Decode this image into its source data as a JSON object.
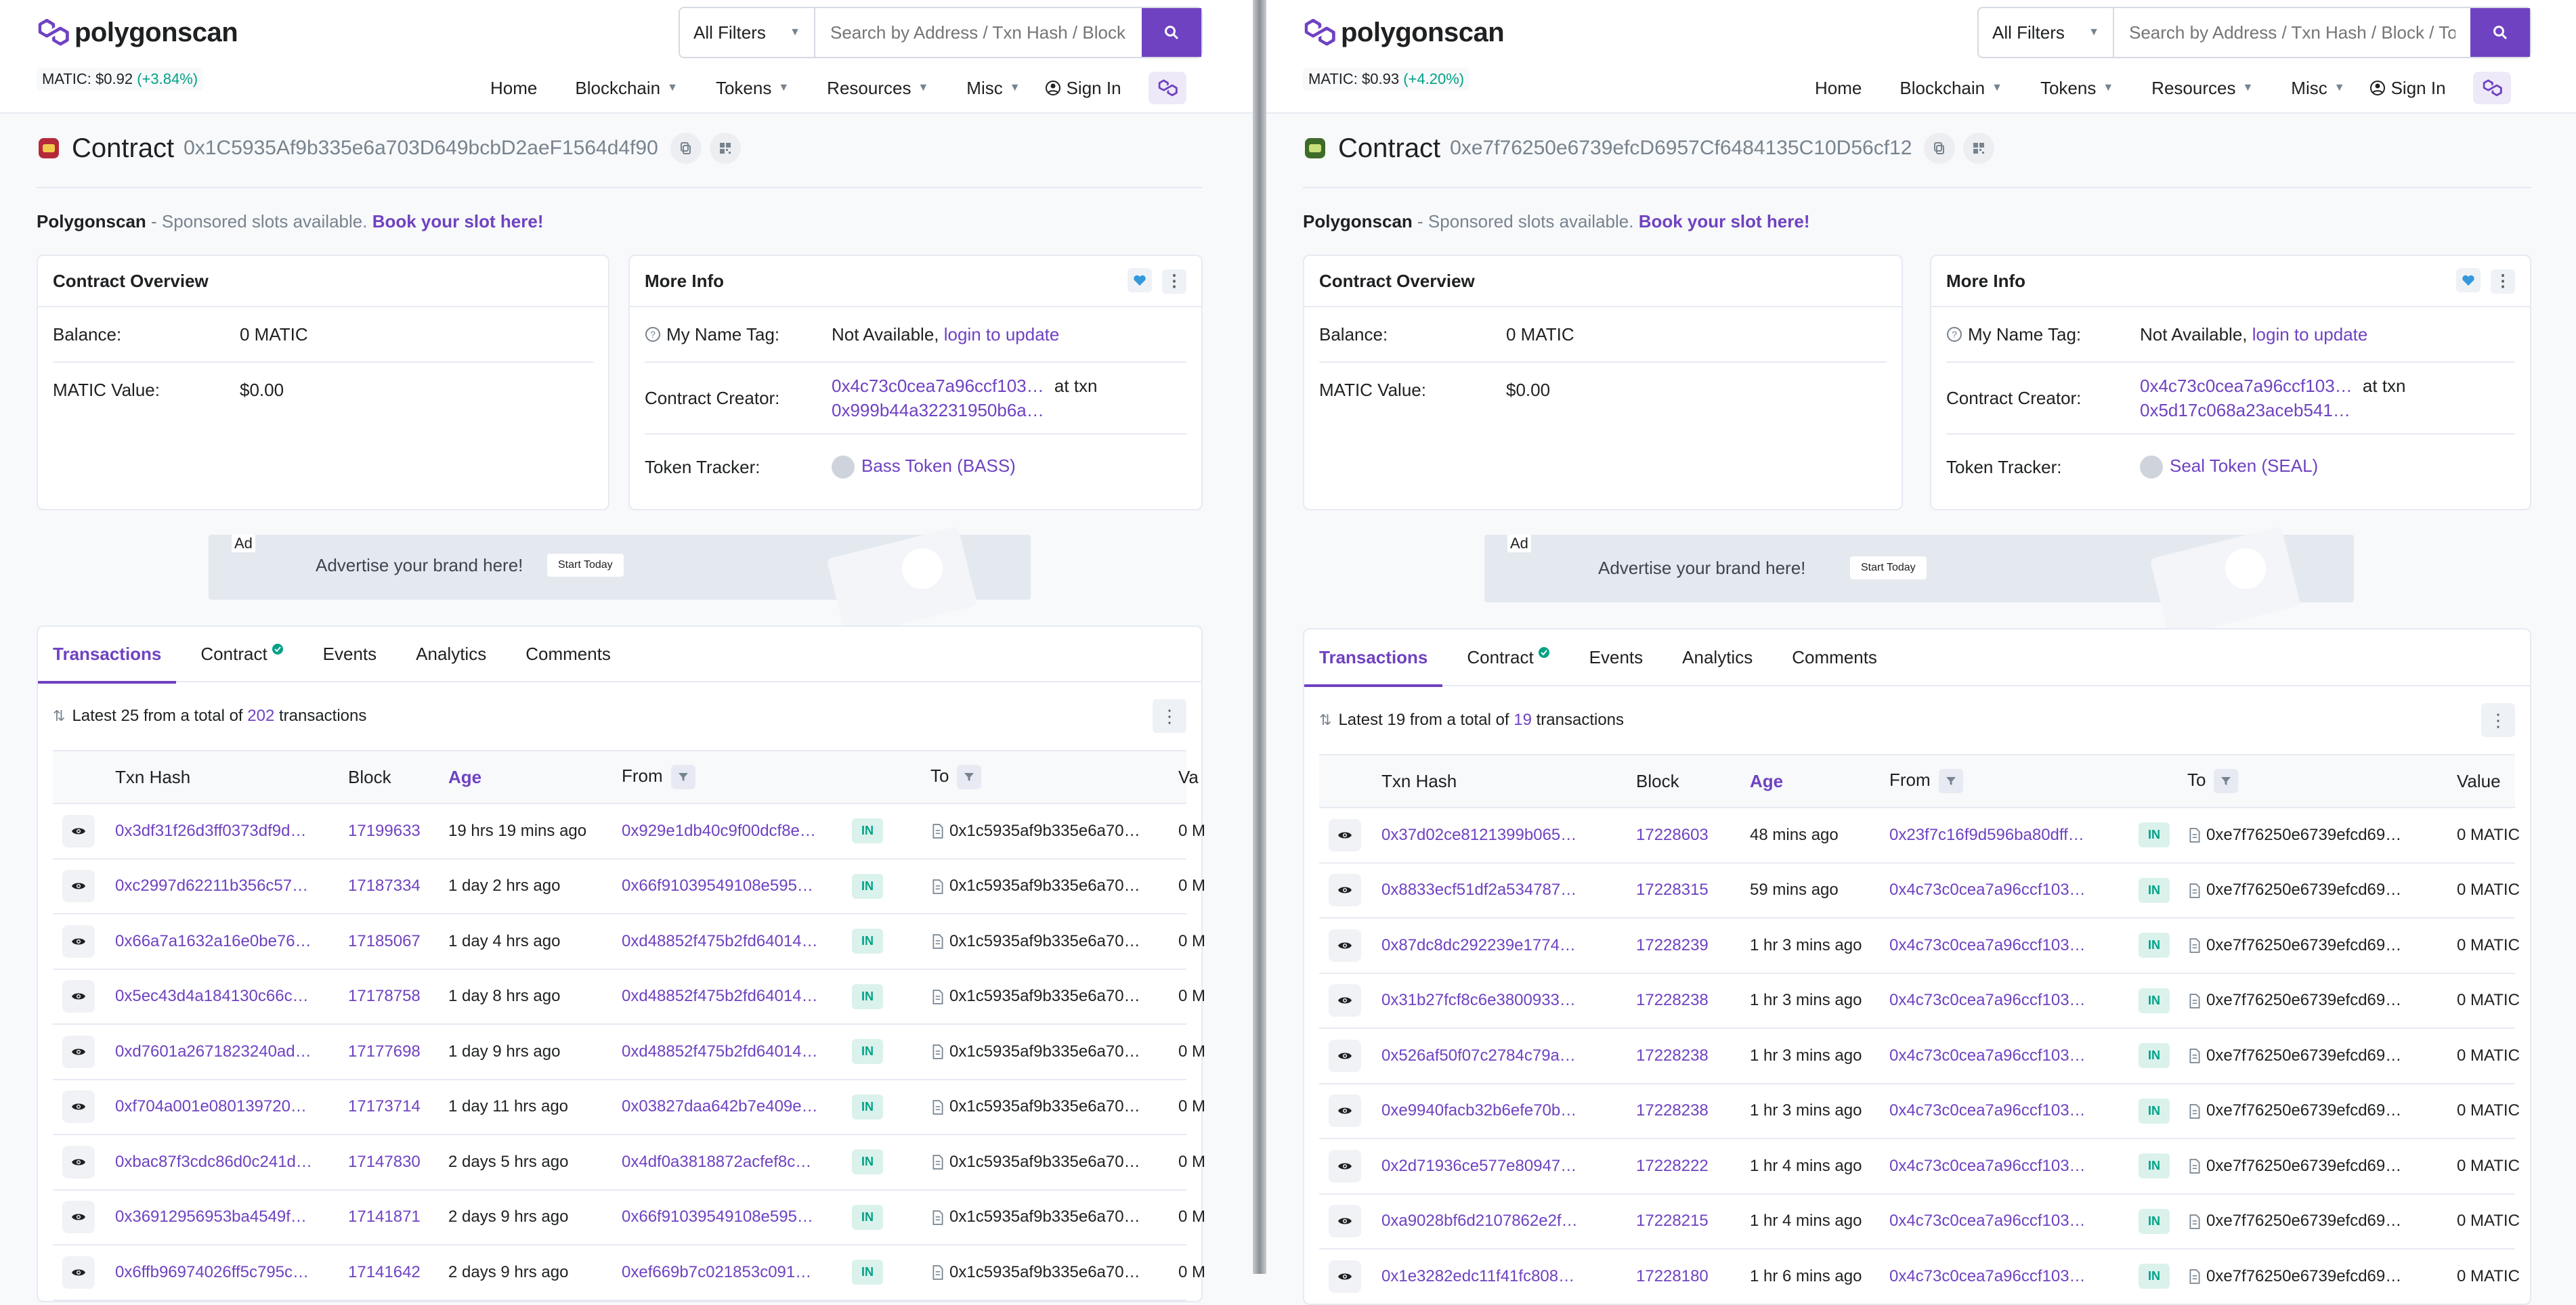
{
  "common": {
    "logo_text": "polygonscan",
    "filter_label": "All Filters",
    "search_placeholder": "Search by Address / Txn Hash / Block / Token",
    "nav": [
      "Home",
      "Blockchain",
      "Tokens",
      "Resources",
      "Misc"
    ],
    "sign_in": "Sign In",
    "contract_label": "Contract",
    "sponsor_brand": "Polygonscan",
    "sponsor_text": " - Sponsored slots available. ",
    "sponsor_link": "Book your slot here!",
    "overview_title": "Contract Overview",
    "balance_label": "Balance:",
    "matic_value_label": "MATIC Value:",
    "more_info_title": "More Info",
    "name_tag_label": "My Name Tag:",
    "name_tag_value": "Not Available, ",
    "name_tag_link": "login to update",
    "creator_label": "Contract Creator:",
    "at_txn": "at txn",
    "token_tracker_label": "Token Tracker:",
    "ad_tag": "Ad",
    "ad_text": "Advertise your brand here!",
    "ad_button": "Start Today",
    "tabs": [
      "Transactions",
      "Contract",
      "Events",
      "Analytics",
      "Comments"
    ],
    "columns": {
      "hash": "Txn Hash",
      "block": "Block",
      "age": "Age",
      "from": "From",
      "to": "To",
      "value": "Value"
    },
    "in_label": "IN",
    "colors": {
      "accent": "#6f42c1",
      "positive": "#00a186"
    }
  },
  "left": {
    "matic_price": "MATIC: $0.92",
    "matic_change": "(+3.84%)",
    "address": "0x1C5935Af9b335e6a703D649bcbD2aeF1564d4f90",
    "balance": "0 MATIC",
    "matic_value": "$0.00",
    "creator": "0x4c73c0cea7a96ccf103…",
    "creator_txn": "0x999b44a32231950b6a…",
    "token_tracker": "Bass Token (BASS)",
    "summary_prefix": "Latest 25 from a total of ",
    "summary_count": "202",
    "summary_suffix": " transactions",
    "value_cut": "0 M",
    "rows": [
      {
        "hash": "0x3df31f26d3ff0373df9d…",
        "block": "17199633",
        "age": "19 hrs 19 mins ago",
        "from": "0x929e1db40c9f00dcf8e…",
        "to": "0x1c5935af9b335e6a70…"
      },
      {
        "hash": "0xc2997d62211b356c57…",
        "block": "17187334",
        "age": "1 day 2 hrs ago",
        "from": "0x66f91039549108e595…",
        "to": "0x1c5935af9b335e6a70…"
      },
      {
        "hash": "0x66a7a1632a16e0be76…",
        "block": "17185067",
        "age": "1 day 4 hrs ago",
        "from": "0xd48852f475b2fd64014…",
        "to": "0x1c5935af9b335e6a70…"
      },
      {
        "hash": "0x5ec43d4a184130c66c…",
        "block": "17178758",
        "age": "1 day 8 hrs ago",
        "from": "0xd48852f475b2fd64014…",
        "to": "0x1c5935af9b335e6a70…"
      },
      {
        "hash": "0xd7601a2671823240ad…",
        "block": "17177698",
        "age": "1 day 9 hrs ago",
        "from": "0xd48852f475b2fd64014…",
        "to": "0x1c5935af9b335e6a70…"
      },
      {
        "hash": "0xf704a001e080139720…",
        "block": "17173714",
        "age": "1 day 11 hrs ago",
        "from": "0x03827daa642b7e409e…",
        "to": "0x1c5935af9b335e6a70…"
      },
      {
        "hash": "0xbac87f3cdc86d0c241d…",
        "block": "17147830",
        "age": "2 days 5 hrs ago",
        "from": "0x4df0a3818872acfef8c…",
        "to": "0x1c5935af9b335e6a70…"
      },
      {
        "hash": "0x36912956953ba4549f…",
        "block": "17141871",
        "age": "2 days 9 hrs ago",
        "from": "0x66f91039549108e595…",
        "to": "0x1c5935af9b335e6a70…"
      },
      {
        "hash": "0x6ffb96974026ff5c795c…",
        "block": "17141642",
        "age": "2 days 9 hrs ago",
        "from": "0xef669b7c021853c091…",
        "to": "0x1c5935af9b335e6a70…"
      }
    ]
  },
  "right": {
    "matic_price": "MATIC: $0.93",
    "matic_change": "(+4.20%)",
    "address": "0xe7f76250e6739efcD6957Cf6484135C10D56cf12",
    "balance": "0 MATIC",
    "matic_value": "$0.00",
    "creator": "0x4c73c0cea7a96ccf103…",
    "creator_txn": "0x5d17c068a23aceb541…",
    "token_tracker": "Seal Token (SEAL)",
    "summary_prefix": "Latest 19 from a total of ",
    "summary_count": "19",
    "summary_suffix": " transactions",
    "value": "0 MATIC",
    "rows": [
      {
        "hash": "0x37d02ce8121399b065…",
        "block": "17228603",
        "age": "48 mins ago",
        "from": "0x23f7c16f9d596ba80dff…",
        "to": "0xe7f76250e6739efcd69…"
      },
      {
        "hash": "0x8833ecf51df2a534787…",
        "block": "17228315",
        "age": "59 mins ago",
        "from": "0x4c73c0cea7a96ccf103…",
        "to": "0xe7f76250e6739efcd69…"
      },
      {
        "hash": "0x87dc8dc292239e1774…",
        "block": "17228239",
        "age": "1 hr 3 mins ago",
        "from": "0x4c73c0cea7a96ccf103…",
        "to": "0xe7f76250e6739efcd69…"
      },
      {
        "hash": "0x31b27fcf8c6e3800933…",
        "block": "17228238",
        "age": "1 hr 3 mins ago",
        "from": "0x4c73c0cea7a96ccf103…",
        "to": "0xe7f76250e6739efcd69…"
      },
      {
        "hash": "0x526af50f07c2784c79a…",
        "block": "17228238",
        "age": "1 hr 3 mins ago",
        "from": "0x4c73c0cea7a96ccf103…",
        "to": "0xe7f76250e6739efcd69…"
      },
      {
        "hash": "0xe9940facb32b6efe70b…",
        "block": "17228238",
        "age": "1 hr 3 mins ago",
        "from": "0x4c73c0cea7a96ccf103…",
        "to": "0xe7f76250e6739efcd69…"
      },
      {
        "hash": "0x2d71936ce577e80947…",
        "block": "17228222",
        "age": "1 hr 4 mins ago",
        "from": "0x4c73c0cea7a96ccf103…",
        "to": "0xe7f76250e6739efcd69…"
      },
      {
        "hash": "0xa9028bf6d2107862e2f…",
        "block": "17228215",
        "age": "1 hr 4 mins ago",
        "from": "0x4c73c0cea7a96ccf103…",
        "to": "0xe7f76250e6739efcd69…"
      },
      {
        "hash": "0x1e3282edc11f41fc808…",
        "block": "17228180",
        "age": "1 hr 6 mins ago",
        "from": "0x4c73c0cea7a96ccf103…",
        "to": "0xe7f76250e6739efcd69…"
      }
    ]
  }
}
